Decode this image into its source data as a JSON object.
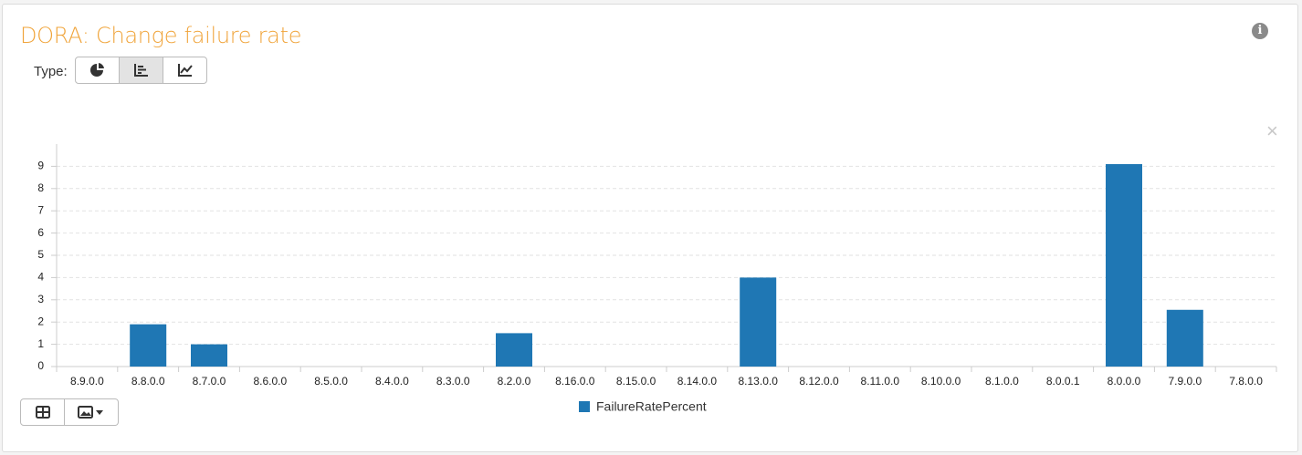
{
  "header": {
    "title": "DORA: Change failure rate",
    "info": "i"
  },
  "toolbar": {
    "type_label": "Type:"
  },
  "chart_data": {
    "type": "bar",
    "categories": [
      "8.9.0.0",
      "8.8.0.0",
      "8.7.0.0",
      "8.6.0.0",
      "8.5.0.0",
      "8.4.0.0",
      "8.3.0.0",
      "8.2.0.0",
      "8.16.0.0",
      "8.15.0.0",
      "8.14.0.0",
      "8.13.0.0",
      "8.12.0.0",
      "8.11.0.0",
      "8.10.0.0",
      "8.1.0.0",
      "8.0.0.1",
      "8.0.0.0",
      "7.9.0.0",
      "7.8.0.0"
    ],
    "series": [
      {
        "name": "FailureRatePercent",
        "color": "#1f77b4",
        "values": [
          0,
          1.9,
          1.0,
          0,
          0,
          0,
          0,
          1.5,
          0,
          0,
          0,
          4.0,
          0,
          0,
          0,
          0,
          0,
          9.1,
          2.55,
          0
        ]
      }
    ],
    "ylim": [
      0,
      10
    ],
    "yticks": [
      0,
      1,
      2,
      3,
      4,
      5,
      6,
      7,
      8,
      9
    ],
    "grid": true
  }
}
